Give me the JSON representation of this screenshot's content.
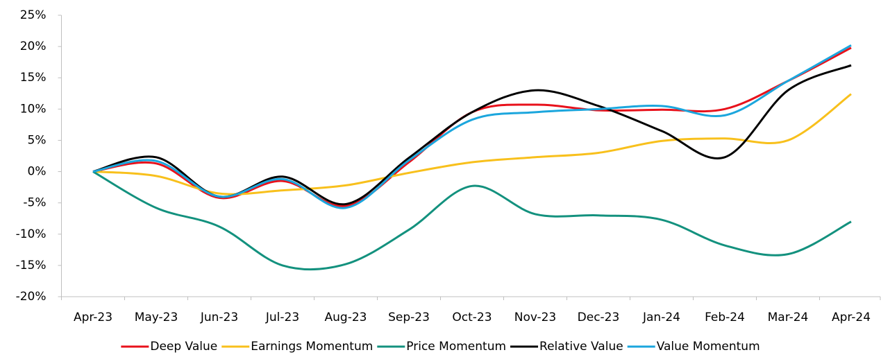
{
  "chart_data": {
    "type": "line",
    "categories": [
      "Apr-23",
      "May-23",
      "Jun-23",
      "Jul-23",
      "Aug-23",
      "Sep-23",
      "Oct-23",
      "Nov-23",
      "Dec-23",
      "Jan-24",
      "Feb-24",
      "Mar-24",
      "Apr-24"
    ],
    "series": [
      {
        "name": "Deep Value",
        "color": "#e8111b",
        "values": [
          0,
          1.3,
          -4.2,
          -1.5,
          -5.5,
          1.5,
          9.5,
          10.7,
          9.8,
          9.9,
          10,
          14.5,
          19.8
        ]
      },
      {
        "name": "Earnings Momentum",
        "color": "#f8c01c",
        "values": [
          0,
          -0.7,
          -3.5,
          -3,
          -2.2,
          -0.2,
          1.5,
          2.3,
          3,
          4.9,
          5.3,
          5,
          12.4
        ]
      },
      {
        "name": "Price Momentum",
        "color": "#13917e",
        "values": [
          0,
          -5.8,
          -8.8,
          -15,
          -14.8,
          -9.3,
          -2.3,
          -6.8,
          -7,
          -7.7,
          -11.8,
          -13.2,
          -8
        ]
      },
      {
        "name": "Relative Value",
        "color": "#000000",
        "values": [
          0,
          2.3,
          -4,
          -0.8,
          -5.2,
          2.2,
          9.5,
          13,
          10.5,
          6.5,
          2.3,
          13,
          17
        ]
      },
      {
        "name": "Value Momentum",
        "color": "#1ba6dd",
        "values": [
          0,
          1.7,
          -4,
          -1.2,
          -5.8,
          1.8,
          8.3,
          9.5,
          10,
          10.5,
          9,
          14.5,
          20.2
        ]
      }
    ],
    "ylim": [
      -20,
      25
    ],
    "yticks": [
      {
        "value": -20,
        "label": "-20%"
      },
      {
        "value": -15,
        "label": "-15%"
      },
      {
        "value": -10,
        "label": "-10%"
      },
      {
        "value": -5,
        "label": "-5%"
      },
      {
        "value": 0,
        "label": "0%"
      },
      {
        "value": 5,
        "label": "5%"
      },
      {
        "value": 10,
        "label": "10%"
      },
      {
        "value": 15,
        "label": "15%"
      },
      {
        "value": 20,
        "label": "20%"
      },
      {
        "value": 25,
        "label": "25%"
      }
    ],
    "legend": "bottom"
  }
}
